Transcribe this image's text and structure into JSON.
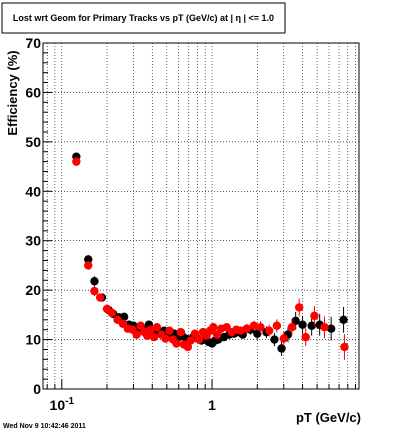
{
  "chart_data": {
    "type": "scatter",
    "title": "Lost wrt Geom for Primary Tracks vs pT (GeV/c) at | η | <= 1.0",
    "xlabel": "pT (GeV/c)",
    "ylabel": "Efficiency (%)",
    "xscale": "log",
    "xlim": [
      0.075,
      9.5
    ],
    "ylim": [
      0,
      70
    ],
    "grid": true,
    "x_tick_labels": [
      {
        "value": 0.1,
        "base": "10",
        "exp": "-1"
      },
      {
        "value": 1,
        "base": "1",
        "exp": ""
      }
    ],
    "y_ticks": [
      0,
      10,
      20,
      30,
      40,
      50,
      60,
      70
    ],
    "timestamp": "Wed Nov  9 10:42:46 2011",
    "series": [
      {
        "color": "#000000",
        "points": [
          [
            0.125,
            47.0,
            0.8
          ],
          [
            0.15,
            26.2,
            0.9
          ],
          [
            0.165,
            21.8,
            1.0
          ],
          [
            0.185,
            18.5,
            0.8
          ],
          [
            0.205,
            16.0,
            0.8
          ],
          [
            0.22,
            15.2,
            0.8
          ],
          [
            0.24,
            14.5,
            0.8
          ],
          [
            0.26,
            14.6,
            0.8
          ],
          [
            0.28,
            13.0,
            0.8
          ],
          [
            0.3,
            12.8,
            0.8
          ],
          [
            0.32,
            12.2,
            0.8
          ],
          [
            0.34,
            12.4,
            0.8
          ],
          [
            0.36,
            11.8,
            0.8
          ],
          [
            0.38,
            13.0,
            0.8
          ],
          [
            0.4,
            11.6,
            0.8
          ],
          [
            0.42,
            12.0,
            0.8
          ],
          [
            0.45,
            11.5,
            0.8
          ],
          [
            0.48,
            11.8,
            0.8
          ],
          [
            0.5,
            10.8,
            0.8
          ],
          [
            0.53,
            11.5,
            0.8
          ],
          [
            0.56,
            11.2,
            0.8
          ],
          [
            0.6,
            10.5,
            0.8
          ],
          [
            0.63,
            10.8,
            0.8
          ],
          [
            0.67,
            10.2,
            0.8
          ],
          [
            0.7,
            10.0,
            0.8
          ],
          [
            0.75,
            10.5,
            0.8
          ],
          [
            0.8,
            10.2,
            0.8
          ],
          [
            0.85,
            9.8,
            0.8
          ],
          [
            0.9,
            10.0,
            0.8
          ],
          [
            0.95,
            9.5,
            0.8
          ],
          [
            1.0,
            9.2,
            0.8
          ],
          [
            1.05,
            9.8,
            0.8
          ],
          [
            1.1,
            10.0,
            0.8
          ],
          [
            1.2,
            10.5,
            0.8
          ],
          [
            1.3,
            11.0,
            0.8
          ],
          [
            1.4,
            11.2,
            0.8
          ],
          [
            1.5,
            11.5,
            0.8
          ],
          [
            1.6,
            11.0,
            0.8
          ],
          [
            1.8,
            12.0,
            1.0
          ],
          [
            2.0,
            11.2,
            1.2
          ],
          [
            2.3,
            11.5,
            1.2
          ],
          [
            2.6,
            10.0,
            1.3
          ],
          [
            2.9,
            8.2,
            1.5
          ],
          [
            3.2,
            11.0,
            1.5
          ],
          [
            3.6,
            13.8,
            1.8
          ],
          [
            4.0,
            13.0,
            1.8
          ],
          [
            4.6,
            12.8,
            2.0
          ],
          [
            5.2,
            13.0,
            2.2
          ],
          [
            6.2,
            12.2,
            2.4
          ],
          [
            7.5,
            14.0,
            2.6
          ]
        ]
      },
      {
        "color": "#ff0000",
        "points": [
          [
            0.125,
            46.0,
            0.8
          ],
          [
            0.15,
            25.0,
            0.9
          ],
          [
            0.165,
            19.8,
            1.0
          ],
          [
            0.18,
            18.5,
            0.8
          ],
          [
            0.2,
            16.2,
            0.8
          ],
          [
            0.215,
            15.4,
            0.8
          ],
          [
            0.235,
            14.0,
            0.8
          ],
          [
            0.255,
            13.2,
            0.8
          ],
          [
            0.275,
            12.2,
            0.8
          ],
          [
            0.295,
            12.0,
            0.8
          ],
          [
            0.315,
            11.0,
            0.8
          ],
          [
            0.335,
            12.8,
            0.8
          ],
          [
            0.355,
            11.5,
            0.8
          ],
          [
            0.37,
            10.8,
            0.8
          ],
          [
            0.39,
            12.0,
            0.8
          ],
          [
            0.41,
            10.5,
            0.8
          ],
          [
            0.43,
            12.5,
            0.8
          ],
          [
            0.46,
            11.0,
            0.8
          ],
          [
            0.49,
            10.2,
            0.8
          ],
          [
            0.52,
            11.8,
            0.8
          ],
          [
            0.55,
            10.0,
            0.8
          ],
          [
            0.58,
            9.2,
            0.8
          ],
          [
            0.62,
            11.5,
            0.8
          ],
          [
            0.65,
            9.0,
            0.8
          ],
          [
            0.69,
            8.5,
            0.8
          ],
          [
            0.72,
            9.8,
            0.8
          ],
          [
            0.77,
            11.2,
            0.8
          ],
          [
            0.82,
            10.0,
            0.8
          ],
          [
            0.87,
            11.5,
            0.8
          ],
          [
            0.92,
            10.8,
            0.8
          ],
          [
            0.97,
            11.8,
            0.8
          ],
          [
            1.02,
            12.5,
            0.8
          ],
          [
            1.08,
            11.0,
            0.8
          ],
          [
            1.15,
            12.2,
            0.8
          ],
          [
            1.25,
            12.5,
            0.8
          ],
          [
            1.35,
            11.5,
            0.8
          ],
          [
            1.45,
            12.0,
            0.8
          ],
          [
            1.55,
            11.8,
            0.8
          ],
          [
            1.7,
            12.2,
            1.0
          ],
          [
            1.9,
            12.8,
            1.0
          ],
          [
            2.1,
            12.5,
            1.2
          ],
          [
            2.4,
            11.8,
            1.2
          ],
          [
            2.7,
            12.8,
            1.3
          ],
          [
            3.0,
            10.2,
            1.5
          ],
          [
            3.4,
            12.5,
            1.6
          ],
          [
            3.8,
            16.5,
            1.8
          ],
          [
            4.2,
            10.5,
            1.8
          ],
          [
            4.8,
            14.8,
            2.0
          ],
          [
            5.6,
            12.5,
            2.2
          ],
          [
            7.6,
            8.5,
            2.6
          ]
        ]
      }
    ]
  }
}
